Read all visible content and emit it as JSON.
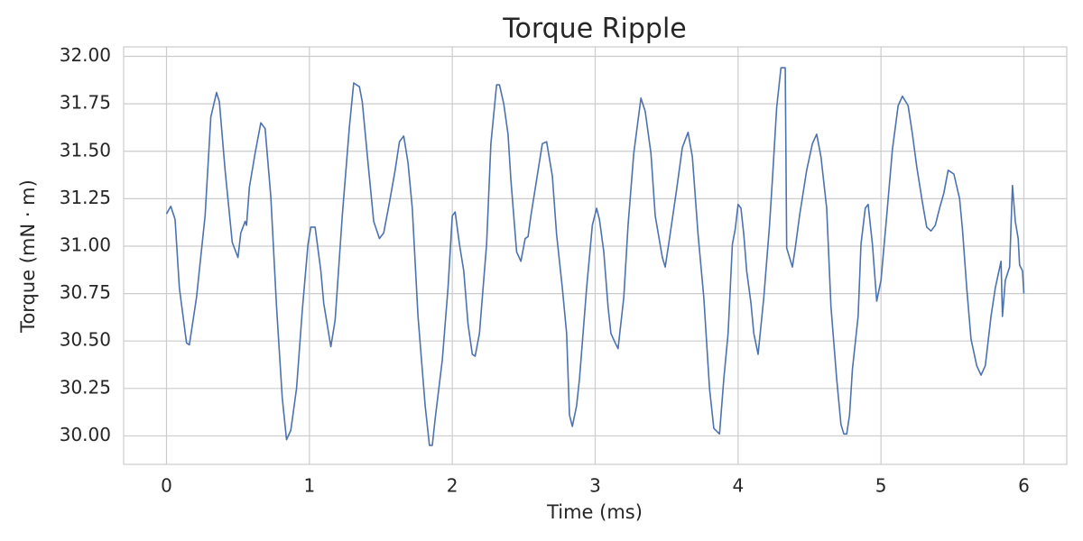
{
  "chart_data": {
    "type": "line",
    "title": "Torque Ripple",
    "x_label": "Time (ms)",
    "y_label": "Torque (mN · m)",
    "xlim": [
      -0.3,
      6.3
    ],
    "ylim": [
      29.85,
      32.05
    ],
    "xticks": [
      0,
      1,
      2,
      3,
      4,
      5,
      6
    ],
    "yticks": [
      {
        "value": 30,
        "label": "30.00"
      },
      {
        "value": 30.25,
        "label": "30.25"
      },
      {
        "value": 30.5,
        "label": "30.50"
      },
      {
        "value": 30.75,
        "label": "30.75"
      },
      {
        "value": 31,
        "label": "31.00"
      },
      {
        "value": 31.25,
        "label": "31.25"
      },
      {
        "value": 31.5,
        "label": "31.50"
      },
      {
        "value": 31.75,
        "label": "31.75"
      },
      {
        "value": 32,
        "label": "32.00"
      }
    ],
    "grid": true,
    "x": [
      0,
      0.03,
      0.06,
      0.09,
      0.14,
      0.16,
      0.21,
      0.27,
      0.31,
      0.35,
      0.37,
      0.41,
      0.46,
      0.5,
      0.52,
      0.55,
      0.56,
      0.58,
      0.62,
      0.66,
      0.69,
      0.73,
      0.77,
      0.81,
      0.84,
      0.87,
      0.91,
      0.95,
      0.99,
      1.01,
      1.04,
      1.08,
      1.1,
      1.15,
      1.18,
      1.23,
      1.28,
      1.31,
      1.35,
      1.37,
      1.41,
      1.45,
      1.49,
      1.52,
      1.56,
      1.6,
      1.63,
      1.66,
      1.69,
      1.72,
      1.76,
      1.81,
      1.84,
      1.86,
      1.88,
      1.93,
      1.97,
      2,
      2.02,
      2.05,
      2.08,
      2.11,
      2.14,
      2.16,
      2.19,
      2.24,
      2.27,
      2.31,
      2.33,
      2.36,
      2.39,
      2.41,
      2.45,
      2.48,
      2.51,
      2.53,
      2.55,
      2.59,
      2.63,
      2.66,
      2.7,
      2.73,
      2.77,
      2.8,
      2.82,
      2.84,
      2.87,
      2.89,
      2.94,
      2.98,
      3.01,
      3.03,
      3.06,
      3.09,
      3.11,
      3.14,
      3.16,
      3.2,
      3.23,
      3.27,
      3.32,
      3.35,
      3.39,
      3.42,
      3.47,
      3.49,
      3.52,
      3.57,
      3.61,
      3.65,
      3.68,
      3.72,
      3.76,
      3.8,
      3.83,
      3.87,
      3.9,
      3.93,
      3.96,
      3.98,
      4,
      4.02,
      4.04,
      4.06,
      4.09,
      4.11,
      4.14,
      4.18,
      4.22,
      4.24,
      4.27,
      4.3,
      4.33,
      4.34,
      4.38,
      4.4,
      4.43,
      4.48,
      4.52,
      4.55,
      4.58,
      4.62,
      4.65,
      4.69,
      4.72,
      4.74,
      4.76,
      4.78,
      4.8,
      4.84,
      4.86,
      4.89,
      4.91,
      4.94,
      4.97,
      5,
      5.04,
      5.08,
      5.12,
      5.15,
      5.19,
      5.22,
      5.25,
      5.29,
      5.32,
      5.35,
      5.38,
      5.41,
      5.44,
      5.47,
      5.51,
      5.55,
      5.57,
      5.6,
      5.63,
      5.67,
      5.7,
      5.73,
      5.77,
      5.8,
      5.84,
      5.85,
      5.87,
      5.9,
      5.92,
      5.94,
      5.96,
      5.97,
      5.99,
      6
    ],
    "series": [
      {
        "color": "#4c72b0",
        "values": [
          31.17,
          31.21,
          31.14,
          30.78,
          30.49,
          30.48,
          30.73,
          31.16,
          31.68,
          31.81,
          31.76,
          31.4,
          31.02,
          30.94,
          31.07,
          31.13,
          31.11,
          31.31,
          31.49,
          31.65,
          31.62,
          31.26,
          30.68,
          30.2,
          29.98,
          30.03,
          30.25,
          30.66,
          31.01,
          31.1,
          31.1,
          30.87,
          30.7,
          30.47,
          30.61,
          31.16,
          31.63,
          31.86,
          31.84,
          31.76,
          31.44,
          31.13,
          31.04,
          31.07,
          31.23,
          31.4,
          31.55,
          31.58,
          31.44,
          31.2,
          30.63,
          30.16,
          29.95,
          29.95,
          30.09,
          30.4,
          30.78,
          31.16,
          31.18,
          31.01,
          30.87,
          30.59,
          30.43,
          30.42,
          30.54,
          31.01,
          31.54,
          31.85,
          31.85,
          31.75,
          31.59,
          31.35,
          30.97,
          30.92,
          31.04,
          31.05,
          31.16,
          31.35,
          31.54,
          31.55,
          31.37,
          31.06,
          30.78,
          30.54,
          30.11,
          30.05,
          30.16,
          30.3,
          30.78,
          31.11,
          31.2,
          31.14,
          30.97,
          30.68,
          30.54,
          30.49,
          30.46,
          30.73,
          31.11,
          31.49,
          31.78,
          31.71,
          31.49,
          31.16,
          30.94,
          30.89,
          31.04,
          31.3,
          31.52,
          31.6,
          31.47,
          31.06,
          30.73,
          30.25,
          30.04,
          30.01,
          30.3,
          30.54,
          31.01,
          31.09,
          31.22,
          31.2,
          31.06,
          30.87,
          30.7,
          30.54,
          30.43,
          30.73,
          31.11,
          31.35,
          31.73,
          31.94,
          31.94,
          30.99,
          30.89,
          30.99,
          31.16,
          31.4,
          31.54,
          31.59,
          31.47,
          31.2,
          30.68,
          30.3,
          30.06,
          30.01,
          30.01,
          30.11,
          30.35,
          30.63,
          31.01,
          31.2,
          31.22,
          31.01,
          30.71,
          30.82,
          31.16,
          31.51,
          31.74,
          31.79,
          31.74,
          31.59,
          31.42,
          31.23,
          31.1,
          31.08,
          31.11,
          31.2,
          31.28,
          31.4,
          31.38,
          31.25,
          31.09,
          30.78,
          30.51,
          30.37,
          30.32,
          30.37,
          30.63,
          30.78,
          30.92,
          30.63,
          30.82,
          30.89,
          31.32,
          31.13,
          31.04,
          30.9,
          30.87,
          30.75
        ]
      }
    ]
  }
}
